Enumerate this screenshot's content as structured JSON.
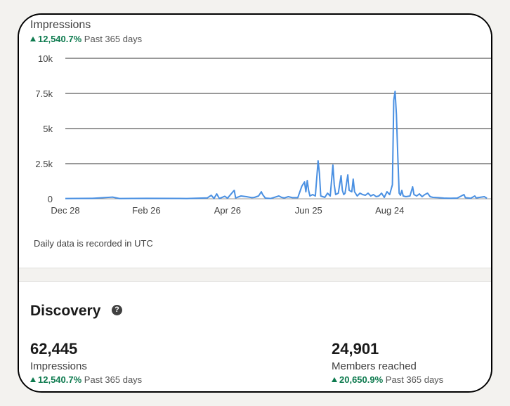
{
  "impressions_card": {
    "title": "Impressions",
    "change_pct": "12,540.7%",
    "change_period": "Past 365 days",
    "note": "Daily data is recorded in UTC",
    "accent": "#4a90e2",
    "trend_up_color": "#0d7a4e"
  },
  "chart_data": {
    "type": "line",
    "title": "Impressions",
    "xlabel": "",
    "ylabel": "",
    "ylim": [
      0,
      10000
    ],
    "y_ticks": [
      0,
      2500,
      5000,
      7500,
      10000
    ],
    "y_tick_labels": [
      "0",
      "2.5k",
      "5k",
      "7.5k",
      "10k"
    ],
    "x_tick_labels": [
      "Dec 28",
      "Feb 26",
      "Apr 26",
      "Jun 25",
      "Aug 24"
    ],
    "x_tick_index": [
      0,
      60,
      120,
      180,
      240
    ],
    "grid": true,
    "series": [
      {
        "color": "#4a90e2",
        "points": [
          [
            0,
            20
          ],
          [
            20,
            30
          ],
          [
            35,
            120
          ],
          [
            40,
            20
          ],
          [
            60,
            30
          ],
          [
            90,
            20
          ],
          [
            105,
            60
          ],
          [
            108,
            250
          ],
          [
            110,
            20
          ],
          [
            112,
            350
          ],
          [
            114,
            20
          ],
          [
            118,
            180
          ],
          [
            120,
            40
          ],
          [
            124,
            500
          ],
          [
            125,
            600
          ],
          [
            126,
            60
          ],
          [
            130,
            200
          ],
          [
            134,
            150
          ],
          [
            138,
            80
          ],
          [
            140,
            100
          ],
          [
            143,
            200
          ],
          [
            145,
            500
          ],
          [
            146,
            300
          ],
          [
            148,
            50
          ],
          [
            152,
            20
          ],
          [
            158,
            200
          ],
          [
            160,
            100
          ],
          [
            162,
            60
          ],
          [
            165,
            150
          ],
          [
            168,
            80
          ],
          [
            172,
            80
          ],
          [
            175,
            900
          ],
          [
            177,
            1200
          ],
          [
            178,
            500
          ],
          [
            179,
            1300
          ],
          [
            180,
            600
          ],
          [
            181,
            200
          ],
          [
            183,
            300
          ],
          [
            185,
            200
          ],
          [
            187,
            2700
          ],
          [
            188,
            1800
          ],
          [
            189,
            200
          ],
          [
            192,
            100
          ],
          [
            194,
            400
          ],
          [
            196,
            200
          ],
          [
            198,
            2400
          ],
          [
            199,
            1000
          ],
          [
            200,
            300
          ],
          [
            202,
            400
          ],
          [
            204,
            1650
          ],
          [
            205,
            600
          ],
          [
            206,
            300
          ],
          [
            207,
            400
          ],
          [
            209,
            1700
          ],
          [
            210,
            600
          ],
          [
            212,
            500
          ],
          [
            213,
            1400
          ],
          [
            214,
            500
          ],
          [
            216,
            200
          ],
          [
            218,
            400
          ],
          [
            220,
            300
          ],
          [
            222,
            250
          ],
          [
            224,
            400
          ],
          [
            226,
            200
          ],
          [
            228,
            300
          ],
          [
            230,
            150
          ],
          [
            232,
            200
          ],
          [
            234,
            400
          ],
          [
            236,
            100
          ],
          [
            238,
            500
          ],
          [
            240,
            300
          ],
          [
            242,
            1000
          ],
          [
            243,
            7000
          ],
          [
            244,
            7650
          ],
          [
            245,
            6000
          ],
          [
            246,
            3000
          ],
          [
            247,
            400
          ],
          [
            248,
            250
          ],
          [
            249,
            600
          ],
          [
            250,
            200
          ],
          [
            252,
            150
          ],
          [
            255,
            200
          ],
          [
            257,
            850
          ],
          [
            258,
            300
          ],
          [
            260,
            200
          ],
          [
            262,
            350
          ],
          [
            264,
            150
          ],
          [
            266,
            300
          ],
          [
            268,
            400
          ],
          [
            270,
            150
          ],
          [
            272,
            100
          ],
          [
            276,
            80
          ],
          [
            280,
            50
          ],
          [
            285,
            40
          ],
          [
            290,
            50
          ],
          [
            295,
            300
          ],
          [
            296,
            80
          ],
          [
            300,
            40
          ],
          [
            303,
            200
          ],
          [
            304,
            60
          ],
          [
            310,
            150
          ],
          [
            312,
            40
          ]
        ]
      }
    ]
  },
  "discovery": {
    "title": "Discovery",
    "help_glyph": "?",
    "metrics": [
      {
        "value": "62,445",
        "label": "Impressions",
        "change_pct": "12,540.7%",
        "change_period": "Past 365 days"
      },
      {
        "value": "24,901",
        "label": "Members reached",
        "change_pct": "20,650.9%",
        "change_period": "Past 365 days"
      }
    ]
  }
}
